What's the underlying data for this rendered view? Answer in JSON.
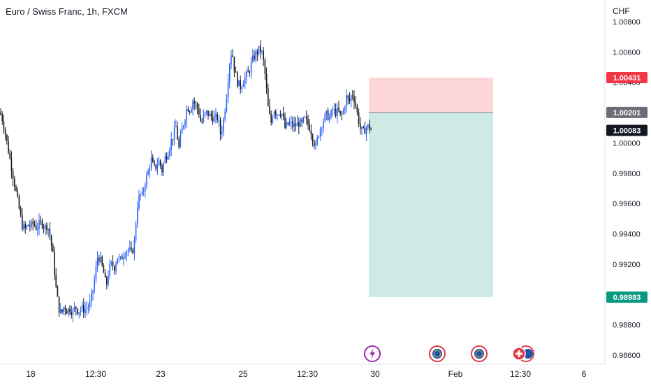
{
  "chart_data": {
    "type": "candlestick",
    "title": "Euro / Swiss Franc, 1h, FXCM",
    "y_axis": {
      "unit": "CHF",
      "ylim": [
        0.9852,
        1.0085
      ],
      "ticks": [
        "1.00800",
        "1.00600",
        "1.00400",
        "1.00200",
        "1.00000",
        "0.99800",
        "0.99600",
        "0.99400",
        "0.99200",
        "0.99000",
        "0.98800",
        "0.98600"
      ],
      "tick_values": [
        1.008,
        1.006,
        1.004,
        1.002,
        1.0,
        0.998,
        0.996,
        0.994,
        0.992,
        0.99,
        0.988,
        0.986
      ]
    },
    "x_axis": {
      "ticks": [
        "18",
        "12:30",
        "23",
        "25",
        "12:30",
        "30",
        "Feb",
        "12:30",
        "6"
      ],
      "grid": false
    },
    "price_labels": [
      {
        "text": "1.00431",
        "value": 1.00431,
        "color": "#f23645"
      },
      {
        "text": "1.00201",
        "value": 1.00201,
        "color": "#6b6e76"
      },
      {
        "text": "1.00083",
        "value": 1.00083,
        "color": "#131722"
      },
      {
        "text": "0.98983",
        "value": 0.98983,
        "color": "#089981"
      }
    ],
    "position_tool": {
      "type": "short",
      "entry": 1.00201,
      "stop": 1.00431,
      "target": 0.98983,
      "stop_color": "#fdd6da",
      "target_color": "#cdebe4"
    },
    "price_path": [
      [
        0,
        1.002
      ],
      [
        4,
        1.0015
      ],
      [
        8,
        1.0005
      ],
      [
        12,
        0.9995
      ],
      [
        16,
        0.9985
      ],
      [
        20,
        0.9975
      ],
      [
        24,
        0.9965
      ],
      [
        28,
        0.9955
      ],
      [
        32,
        0.9945
      ],
      [
        36,
        0.9943
      ],
      [
        40,
        0.9946
      ],
      [
        44,
        0.9945
      ],
      [
        48,
        0.9947
      ],
      [
        52,
        0.9944
      ],
      [
        56,
        0.9946
      ],
      [
        60,
        0.9948
      ],
      [
        64,
        0.9944
      ],
      [
        68,
        0.9946
      ],
      [
        72,
        0.9938
      ],
      [
        76,
        0.9925
      ],
      [
        80,
        0.9905
      ],
      [
        84,
        0.9891
      ],
      [
        88,
        0.9887
      ],
      [
        92,
        0.9893
      ],
      [
        96,
        0.9889
      ],
      [
        100,
        0.9891
      ],
      [
        104,
        0.9888
      ],
      [
        108,
        0.9892
      ],
      [
        112,
        0.9889
      ],
      [
        116,
        0.9891
      ],
      [
        120,
        0.989
      ],
      [
        124,
        0.9891
      ],
      [
        128,
        0.9893
      ],
      [
        132,
        0.99
      ],
      [
        136,
        0.9912
      ],
      [
        140,
        0.9926
      ],
      [
        144,
        0.9922
      ],
      [
        148,
        0.9915
      ],
      [
        152,
        0.9905
      ],
      [
        156,
        0.9917
      ],
      [
        160,
        0.992
      ],
      [
        164,
        0.9918
      ],
      [
        168,
        0.9925
      ],
      [
        172,
        0.9922
      ],
      [
        176,
        0.9926
      ],
      [
        180,
        0.9929
      ],
      [
        184,
        0.993
      ],
      [
        188,
        0.9927
      ],
      [
        192,
        0.9932
      ],
      [
        196,
        0.9957
      ],
      [
        200,
        0.9966
      ],
      [
        204,
        0.9965
      ],
      [
        208,
        0.9975
      ],
      [
        212,
        0.998
      ],
      [
        216,
        0.999
      ],
      [
        220,
        0.9983
      ],
      [
        224,
        0.9985
      ],
      [
        228,
        0.9988
      ],
      [
        232,
        0.9982
      ],
      [
        236,
        0.999
      ],
      [
        240,
        0.9993
      ],
      [
        244,
        1.0
      ],
      [
        248,
        1.0005
      ],
      [
        252,
        1.0011
      ],
      [
        256,
        0.9996
      ],
      [
        260,
        1.0008
      ],
      [
        264,
        1.0015
      ],
      [
        268,
        1.0024
      ],
      [
        272,
        1.0022
      ],
      [
        276,
        1.0028
      ],
      [
        280,
        1.0025
      ],
      [
        284,
        1.0022
      ],
      [
        288,
        1.0012
      ],
      [
        292,
        1.0018
      ],
      [
        296,
        1.002
      ],
      [
        300,
        1.0018
      ],
      [
        304,
        1.0017
      ],
      [
        308,
        1.0016
      ],
      [
        312,
        1.0017
      ],
      [
        316,
        1.0005
      ],
      [
        320,
        1.0015
      ],
      [
        324,
        1.003
      ],
      [
        328,
        1.0051
      ],
      [
        332,
        1.0062
      ],
      [
        336,
        1.0047
      ],
      [
        340,
        1.004
      ],
      [
        344,
        1.0037
      ],
      [
        348,
        1.0041
      ],
      [
        352,
        1.0044
      ],
      [
        356,
        1.0046
      ],
      [
        360,
        1.0053
      ],
      [
        364,
        1.0057
      ],
      [
        368,
        1.006
      ],
      [
        372,
        1.0062
      ],
      [
        376,
        1.0058
      ],
      [
        380,
        1.0043
      ],
      [
        384,
        1.0022
      ],
      [
        388,
        1.0013
      ],
      [
        392,
        1.0023
      ],
      [
        396,
        1.0019
      ],
      [
        400,
        1.0021
      ],
      [
        404,
        1.0019
      ],
      [
        408,
        1.001
      ],
      [
        412,
        1.0012
      ],
      [
        416,
        1.0013
      ],
      [
        420,
        1.0011
      ],
      [
        424,
        1.0012
      ],
      [
        428,
        1.0013
      ],
      [
        432,
        1.0012
      ],
      [
        436,
        1.0016
      ],
      [
        440,
        1.0013
      ],
      [
        444,
        1.001
      ],
      [
        448,
        1.0003
      ],
      [
        452,
        0.9997
      ],
      [
        456,
        1.0006
      ],
      [
        460,
        1.0012
      ],
      [
        464,
        1.0016
      ],
      [
        468,
        1.0019
      ],
      [
        472,
        1.0016
      ],
      [
        476,
        1.0022
      ],
      [
        480,
        1.002
      ],
      [
        484,
        1.0021
      ],
      [
        488,
        1.0017
      ],
      [
        492,
        1.0022
      ],
      [
        496,
        1.003
      ],
      [
        500,
        1.0027
      ],
      [
        504,
        1.0033
      ],
      [
        508,
        1.0028
      ],
      [
        512,
        1.0018
      ],
      [
        516,
        1.0009
      ],
      [
        520,
        1.0007
      ],
      [
        524,
        1.001
      ],
      [
        528,
        1.0011
      ],
      [
        532,
        1.0008
      ]
    ],
    "up_color": "#2962ff",
    "down_color": "#131722"
  }
}
